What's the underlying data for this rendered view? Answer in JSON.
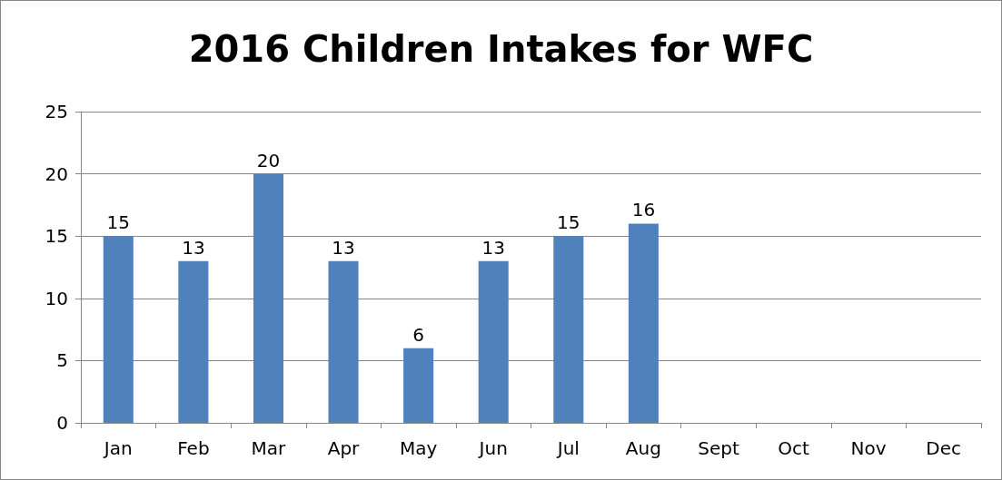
{
  "chart_data": {
    "type": "bar",
    "title": "2016 Children Intakes for WFC",
    "categories": [
      "Jan",
      "Feb",
      "Mar",
      "Apr",
      "May",
      "Jun",
      "Jul",
      "Aug",
      "Sept",
      "Oct",
      "Nov",
      "Dec"
    ],
    "values": [
      15,
      13,
      20,
      13,
      6,
      13,
      15,
      16,
      null,
      null,
      null,
      null
    ],
    "color": "#4f81bd",
    "ylim": [
      0,
      25
    ],
    "yticks": [
      0,
      5,
      10,
      15,
      20,
      25
    ],
    "grid": "y",
    "data_labels": true
  }
}
